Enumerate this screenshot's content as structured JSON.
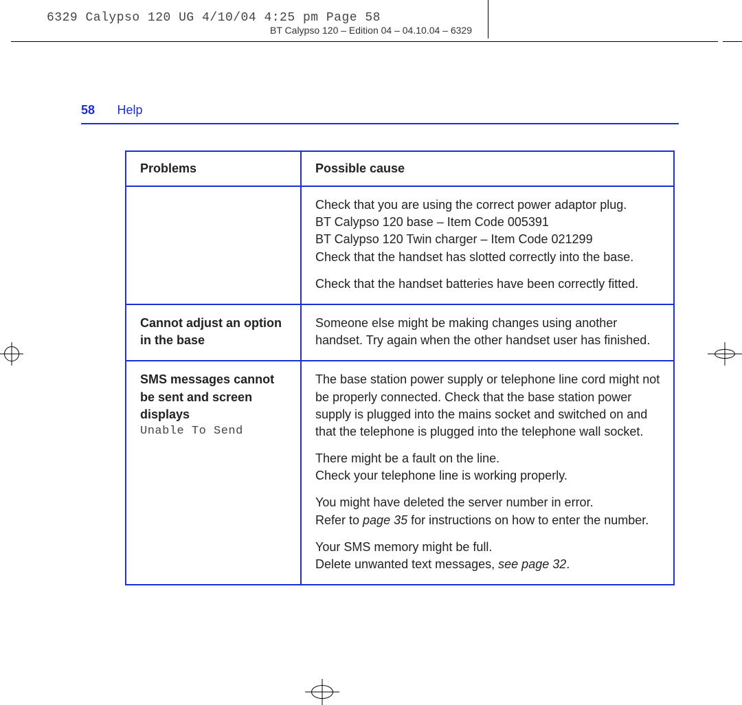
{
  "slug": "6329 Calypso 120 UG   4/10/04  4:25 pm  Page 58",
  "edition_line": "BT Calypso 120 – Edition 04 – 04.10.04 – 6329",
  "page_number": "58",
  "section": "Help",
  "colors": {
    "rule_blue": "#1a2fd6",
    "text": "#222222",
    "slug_text": "#444444",
    "background": "#ffffff"
  },
  "table": {
    "headers": {
      "problems": "Problems",
      "cause": "Possible cause"
    },
    "rows": [
      {
        "problem_html": "",
        "cause_paras": [
          "Check that you are using the correct power adaptor plug.\nBT Calypso 120 base – Item Code 005391\nBT Calypso 120 Twin charger – Item Code 021299\nCheck that the handset has slotted correctly into the base.",
          "Check that the handset batteries have been correctly fitted."
        ]
      },
      {
        "problem_bold": "Cannot adjust an option in the base",
        "cause_paras": [
          "Someone else might be making changes using another handset. Try again when the other handset user has finished."
        ]
      },
      {
        "problem_bold": "SMS messages cannot be sent and screen displays",
        "problem_extra_mono": "Unable To Send",
        "cause_paras": [
          "The base station power supply or telephone line cord might not be properly connected. Check that the base station power supply is plugged into the mains socket and switched on and that the telephone is plugged into the telephone wall socket.",
          "There might be a fault on the line.\nCheck your telephone line is working properly.",
          {
            "pre": "You might have deleted the server number in error.\nRefer to ",
            "ital": "page 35",
            "post": " for instructions on how to enter the number."
          },
          {
            "pre": "Your SMS memory might be full.\nDelete unwanted text messages, ",
            "ital": "see page 32",
            "post": "."
          }
        ]
      }
    ]
  }
}
